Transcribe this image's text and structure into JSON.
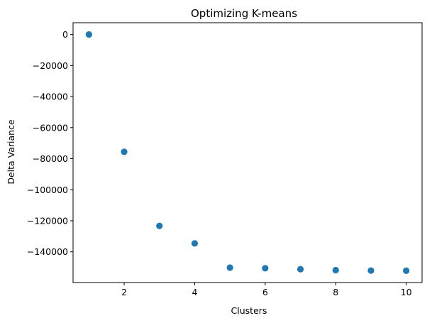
{
  "chart_data": {
    "type": "scatter",
    "title": "Optimizing K-means",
    "xlabel": "Clusters",
    "ylabel": "Delta Variance",
    "x": [
      1,
      2,
      3,
      4,
      5,
      6,
      7,
      8,
      9,
      10
    ],
    "y": [
      0,
      -75600,
      -123300,
      -134600,
      -150200,
      -150600,
      -151200,
      -151800,
      -152100,
      -152200
    ],
    "xlim": [
      0.55,
      10.45
    ],
    "ylim": [
      -159800,
      7600
    ],
    "xticks": [
      2,
      4,
      6,
      8,
      10
    ],
    "xtick_labels": [
      "2",
      "4",
      "6",
      "8",
      "10"
    ],
    "yticks": [
      0,
      -20000,
      -40000,
      -60000,
      -80000,
      -100000,
      -120000,
      -140000
    ],
    "ytick_labels": [
      "0",
      "−20000",
      "−40000",
      "−60000",
      "−80000",
      "−100000",
      "−120000",
      "−140000"
    ],
    "grid": false,
    "marker_color": "#1f77b4"
  }
}
